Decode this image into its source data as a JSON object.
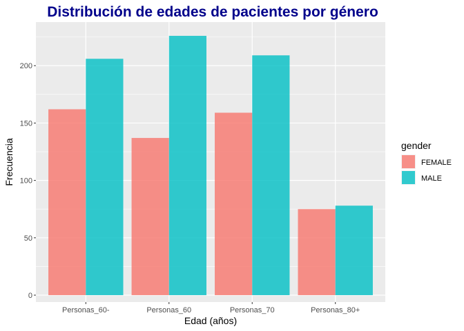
{
  "chart_data": {
    "type": "bar",
    "title": "Distribución de edades de pacientes por género",
    "title_color": "#00008b",
    "xlabel": "Edad (años)",
    "ylabel": "Frecuencia",
    "categories": [
      "Personas_60-",
      "Personas_60",
      "Personas_70",
      "Personas_80+"
    ],
    "series": [
      {
        "name": "FEMALE",
        "color": "#f8766d",
        "values": [
          162,
          137,
          159,
          75
        ]
      },
      {
        "name": "MALE",
        "color": "#00bfc4",
        "values": [
          206,
          226,
          209,
          78
        ]
      }
    ],
    "ylim": [
      -6,
      238
    ],
    "yticks": [
      0,
      50,
      100,
      150,
      200
    ],
    "ytick_labels": [
      "0",
      "50",
      "100",
      "150",
      "200"
    ],
    "grid": true,
    "panel_color": "#ebebeb",
    "legend": {
      "title": "gender",
      "placement": "right"
    }
  }
}
